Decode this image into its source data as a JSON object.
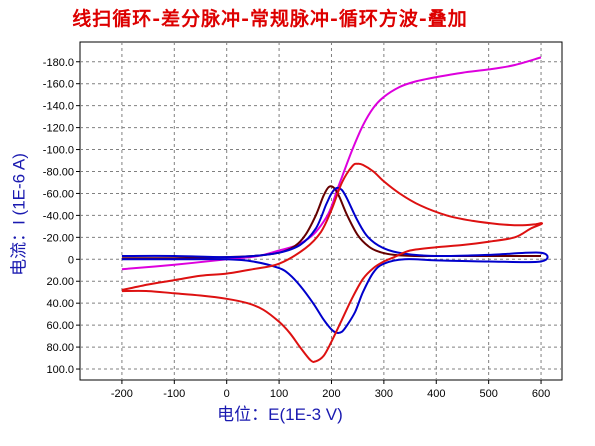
{
  "title": "线扫循环-差分脉冲-常规脉冲-循环方波-叠加",
  "chart_data": {
    "type": "line",
    "title": "线扫循环-差分脉冲-常规脉冲-循环方波-叠加",
    "xlabel": "电位：E(1E-3 V)",
    "ylabel": "电流：I (1E-6 A)",
    "xlim": [
      -280,
      640
    ],
    "ylim": [
      -198,
      110
    ],
    "y_inverted": true,
    "grid": true,
    "x_ticks": [
      -200,
      -100,
      0,
      100,
      200,
      300,
      400,
      500,
      600
    ],
    "x_tick_labels": [
      "-200",
      "-100",
      "0",
      "100",
      "200",
      "300",
      "400",
      "500",
      "600"
    ],
    "y_ticks": [
      -180,
      -160,
      -140,
      -120,
      -100,
      -80,
      -60,
      -40,
      -20,
      0,
      20,
      40,
      60,
      80,
      100
    ],
    "y_tick_labels": [
      "-180.0",
      "-160.0",
      "-140.0",
      "-120.0",
      "-100.0",
      "-80.00",
      "-60.00",
      "-40.00",
      "-20.00",
      "0",
      "20.00",
      "40.00",
      "60.00",
      "80.00",
      "100.0"
    ],
    "series": [
      {
        "color": "#dd00dd",
        "points": [
          [
            -200,
            9
          ],
          [
            -100,
            5
          ],
          [
            0,
            0
          ],
          [
            60,
            -3
          ],
          [
            100,
            -8
          ],
          [
            130,
            -12
          ],
          [
            150,
            -17
          ],
          [
            170,
            -25
          ],
          [
            190,
            -38
          ],
          [
            200,
            -48
          ],
          [
            210,
            -62
          ],
          [
            220,
            -75
          ],
          [
            240,
            -100
          ],
          [
            260,
            -122
          ],
          [
            280,
            -138
          ],
          [
            300,
            -148
          ],
          [
            330,
            -157
          ],
          [
            360,
            -162
          ],
          [
            400,
            -166
          ],
          [
            450,
            -170
          ],
          [
            500,
            -173
          ],
          [
            550,
            -177
          ],
          [
            600,
            -184
          ]
        ]
      },
      {
        "color": "#660000",
        "points": [
          [
            -200,
            -1
          ],
          [
            -100,
            -1
          ],
          [
            0,
            -2
          ],
          [
            50,
            -3
          ],
          [
            100,
            -6
          ],
          [
            130,
            -12
          ],
          [
            150,
            -22
          ],
          [
            170,
            -40
          ],
          [
            185,
            -58
          ],
          [
            195,
            -66
          ],
          [
            205,
            -65
          ],
          [
            215,
            -57
          ],
          [
            230,
            -40
          ],
          [
            250,
            -22
          ],
          [
            270,
            -12
          ],
          [
            290,
            -7
          ],
          [
            320,
            -4
          ],
          [
            360,
            -3
          ],
          [
            400,
            -3
          ],
          [
            450,
            -3
          ],
          [
            500,
            -3
          ],
          [
            550,
            -3
          ],
          [
            600,
            -3
          ]
        ]
      },
      {
        "color": "#0000cc",
        "points": [
          [
            -200,
            -3
          ],
          [
            -100,
            -3
          ],
          [
            0,
            -2
          ],
          [
            50,
            -3
          ],
          [
            100,
            -6
          ],
          [
            140,
            -13
          ],
          [
            170,
            -28
          ],
          [
            190,
            -50
          ],
          [
            200,
            -60
          ],
          [
            210,
            -65
          ],
          [
            220,
            -63
          ],
          [
            230,
            -55
          ],
          [
            250,
            -35
          ],
          [
            270,
            -20
          ],
          [
            300,
            -10
          ],
          [
            340,
            -5
          ],
          [
            400,
            -3
          ],
          [
            500,
            -4
          ],
          [
            600,
            -6
          ],
          [
            600,
            2
          ],
          [
            500,
            2
          ],
          [
            400,
            1
          ],
          [
            340,
            0
          ],
          [
            300,
            4
          ],
          [
            280,
            12
          ],
          [
            260,
            30
          ],
          [
            245,
            48
          ],
          [
            230,
            60
          ],
          [
            220,
            66
          ],
          [
            210,
            67
          ],
          [
            200,
            64
          ],
          [
            185,
            55
          ],
          [
            165,
            40
          ],
          [
            140,
            24
          ],
          [
            120,
            14
          ],
          [
            100,
            8
          ],
          [
            50,
            2
          ],
          [
            0,
            0
          ],
          [
            -100,
            0
          ],
          [
            -200,
            0
          ]
        ]
      },
      {
        "color": "#dd1111",
        "points": [
          [
            -200,
            28
          ],
          [
            -150,
            23
          ],
          [
            -100,
            19
          ],
          [
            -50,
            15
          ],
          [
            0,
            13
          ],
          [
            50,
            9
          ],
          [
            100,
            4
          ],
          [
            150,
            -10
          ],
          [
            180,
            -25
          ],
          [
            200,
            -45
          ],
          [
            220,
            -70
          ],
          [
            240,
            -85
          ],
          [
            250,
            -87
          ],
          [
            260,
            -86
          ],
          [
            280,
            -80
          ],
          [
            300,
            -71
          ],
          [
            330,
            -60
          ],
          [
            370,
            -49
          ],
          [
            420,
            -40
          ],
          [
            470,
            -35
          ],
          [
            520,
            -32
          ],
          [
            560,
            -31
          ],
          [
            590,
            -32
          ],
          [
            600,
            -33
          ],
          [
            600,
            -32
          ],
          [
            580,
            -28
          ],
          [
            550,
            -20
          ],
          [
            500,
            -16
          ],
          [
            450,
            -13
          ],
          [
            400,
            -11
          ],
          [
            350,
            -8
          ],
          [
            320,
            -2
          ],
          [
            300,
            2
          ],
          [
            280,
            8
          ],
          [
            260,
            18
          ],
          [
            240,
            35
          ],
          [
            220,
            55
          ],
          [
            200,
            75
          ],
          [
            185,
            88
          ],
          [
            170,
            93
          ],
          [
            160,
            92
          ],
          [
            140,
            80
          ],
          [
            120,
            67
          ],
          [
            100,
            57
          ],
          [
            70,
            46
          ],
          [
            40,
            40
          ],
          [
            0,
            36
          ],
          [
            -50,
            33
          ],
          [
            -100,
            31
          ],
          [
            -150,
            29
          ],
          [
            -200,
            29
          ]
        ]
      }
    ]
  }
}
